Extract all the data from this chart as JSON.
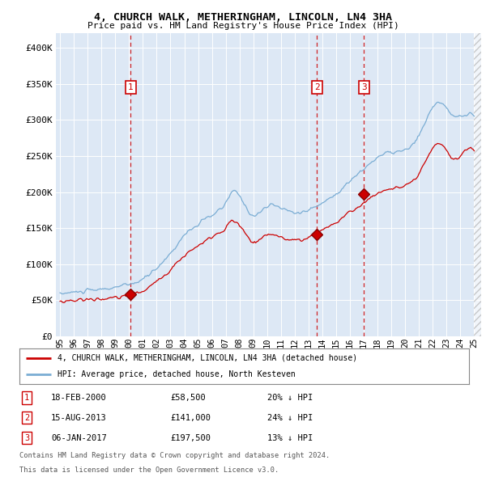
{
  "title": "4, CHURCH WALK, METHERINGHAM, LINCOLN, LN4 3HA",
  "subtitle": "Price paid vs. HM Land Registry's House Price Index (HPI)",
  "legend_line1": "4, CHURCH WALK, METHERINGHAM, LINCOLN, LN4 3HA (detached house)",
  "legend_line2": "HPI: Average price, detached house, North Kesteven",
  "footnote1": "Contains HM Land Registry data © Crown copyright and database right 2024.",
  "footnote2": "This data is licensed under the Open Government Licence v3.0.",
  "transaction_labels": [
    {
      "num": "1",
      "date": "18-FEB-2000",
      "price": "£58,500",
      "pct": "20% ↓ HPI",
      "x_year": 2000.12
    },
    {
      "num": "2",
      "date": "15-AUG-2013",
      "price": "£141,000",
      "pct": "24% ↓ HPI",
      "x_year": 2013.62
    },
    {
      "num": "3",
      "date": "06-JAN-2017",
      "price": "£197,500",
      "pct": "13% ↓ HPI",
      "x_year": 2017.02
    }
  ],
  "transaction_prices": [
    58500,
    141000,
    197500
  ],
  "ylim": [
    0,
    420000
  ],
  "yticks": [
    0,
    50000,
    100000,
    150000,
    200000,
    250000,
    300000,
    350000,
    400000
  ],
  "ytick_labels": [
    "£0",
    "£50K",
    "£100K",
    "£150K",
    "£200K",
    "£250K",
    "£300K",
    "£350K",
    "£400K"
  ],
  "bg_color": "#dde8f5",
  "line_color_red": "#cc0000",
  "line_color_blue": "#7aadd4",
  "vline_color": "#cc0000",
  "box_color": "#cc0000",
  "xlim_start": 1994.7,
  "xlim_end": 2025.5,
  "hatch_start": 2025.0
}
